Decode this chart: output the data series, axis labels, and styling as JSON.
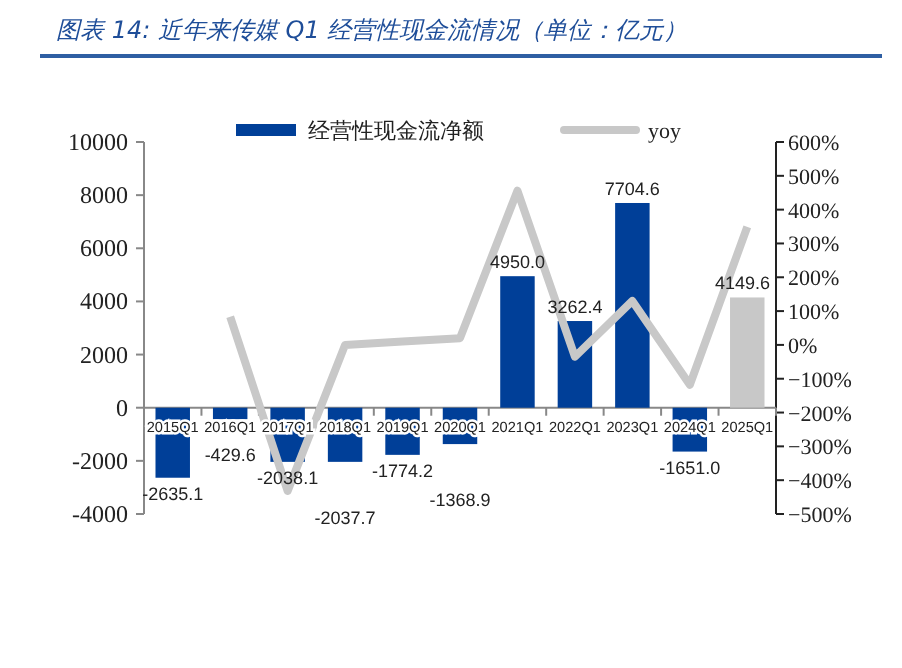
{
  "chart_data": {
    "type": "bar",
    "title": "图表 14:  近年来传媒 Q1 经营性现金流情况（单位：亿元）",
    "categories": [
      "2015Q1",
      "2016Q1",
      "2017Q1",
      "2018Q1",
      "2019Q1",
      "2020Q1",
      "2021Q1",
      "2022Q1",
      "2023Q1",
      "2024Q1",
      "2025Q1"
    ],
    "series": [
      {
        "name": "经营性现金流净额",
        "color": "#003f98",
        "colors": [
          "#003f98",
          "#003f98",
          "#003f98",
          "#003f98",
          "#003f98",
          "#003f98",
          "#003f98",
          "#003f98",
          "#003f98",
          "#003f98",
          "#c8c8c8"
        ],
        "values": [
          -2635.1,
          -429.6,
          -2038.1,
          -2037.7,
          -1774.2,
          -1368.9,
          4950.0,
          3262.4,
          7704.6,
          -1651.0,
          4149.6
        ],
        "value_labels": [
          "-2635.1",
          "-429.6",
          "-2038.1",
          "-2037.7",
          "-1774.2",
          "-1368.9",
          "4950.0",
          "3262.4",
          "7704.6",
          "-1651.0",
          "4149.6"
        ]
      },
      {
        "name": "yoy",
        "type": "line",
        "axis": "y2",
        "color": "#c8c8c8",
        "values": [
          null,
          83,
          -432,
          0,
          10,
          20,
          456,
          -35,
          130,
          -118,
          349
        ]
      }
    ],
    "ylim": [
      -4000,
      10000
    ],
    "yticks": [
      -4000,
      -2000,
      0,
      2000,
      4000,
      6000,
      8000,
      10000
    ],
    "y2lim": [
      -500,
      600
    ],
    "y2ticks": [
      {
        "value": -500,
        "label": "−500%"
      },
      {
        "value": -400,
        "label": "−400%"
      },
      {
        "value": -300,
        "label": "−300%"
      },
      {
        "value": -200,
        "label": "−200%"
      },
      {
        "value": -100,
        "label": "−100%"
      },
      {
        "value": 0,
        "label": "0%"
      },
      {
        "value": 100,
        "label": "100%"
      },
      {
        "value": 200,
        "label": "200%"
      },
      {
        "value": 300,
        "label": "300%"
      },
      {
        "value": 400,
        "label": "400%"
      },
      {
        "value": 500,
        "label": "500%"
      },
      {
        "value": 600,
        "label": "600%"
      }
    ],
    "legend": "top"
  }
}
